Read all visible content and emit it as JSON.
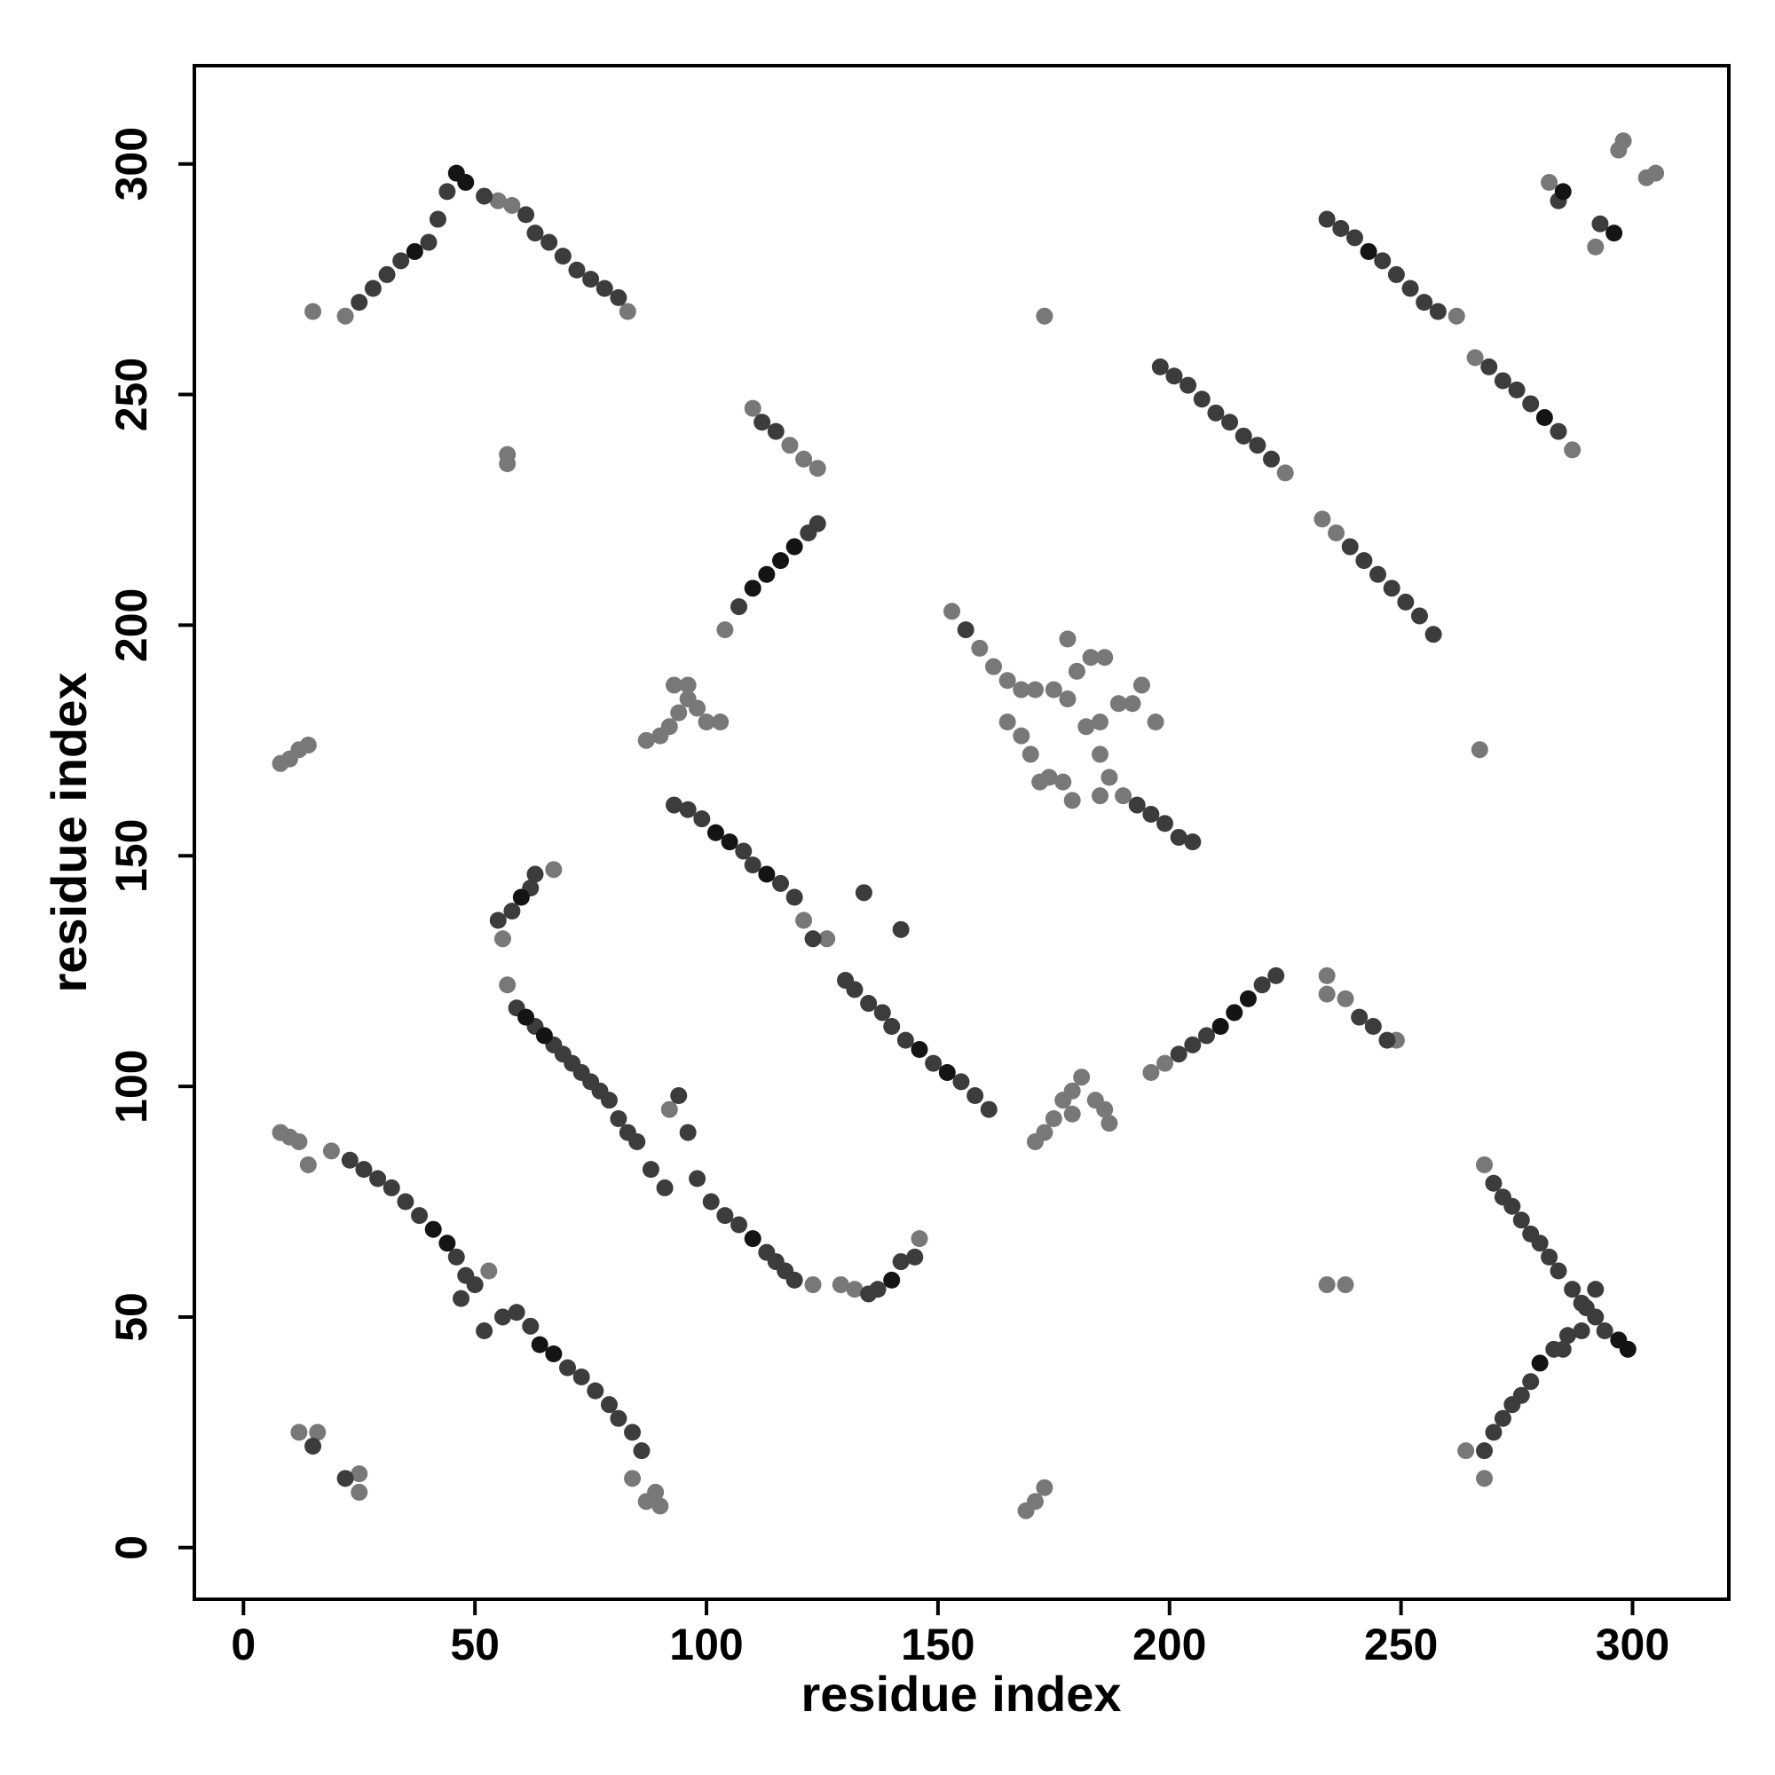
{
  "chart_data": {
    "type": "scatter",
    "x_label": "residue index",
    "y_label": "residue index",
    "xlim": [
      -10.6,
      320.8
    ],
    "ylim": [
      -11.2,
      321.3
    ],
    "xticks": [
      0,
      50,
      100,
      150,
      200,
      250,
      300
    ],
    "yticks": [
      0,
      50,
      100,
      150,
      200,
      250,
      300
    ],
    "series": [
      {
        "color": "#787878",
        "x": [
          15,
          22,
          55,
          58,
          83,
          57,
          57,
          173,
          267,
          110,
          118,
          121,
          124,
          104,
          225,
          262,
          266,
          287,
          282,
          292,
          298,
          297,
          305,
          303,
          233,
          236,
          153,
          159,
          162,
          165,
          168,
          171,
          175,
          178,
          182,
          185,
          187,
          190,
          178,
          180,
          183,
          186,
          189,
          192,
          194,
          197,
          185,
          165,
          168,
          170,
          172,
          174,
          177,
          179,
          185,
          8,
          10,
          12,
          14,
          87,
          90,
          92,
          94,
          96,
          98,
          100,
          103,
          93,
          96,
          56,
          67,
          57,
          121,
          126,
          196,
          199,
          234,
          234,
          238,
          249,
          171,
          173,
          175,
          177,
          179,
          181,
          184,
          186,
          187,
          179,
          8,
          10,
          12,
          14,
          19,
          53,
          84,
          87,
          90,
          89,
          92,
          123,
          129,
          132,
          146,
          12,
          16,
          25,
          25,
          169,
          171,
          173,
          234,
          238,
          268,
          264,
          268
        ],
        "y": [
          268,
          267,
          292,
          291,
          268,
          235,
          237,
          267,
          173,
          247,
          239,
          236,
          234,
          199,
          233,
          267,
          258,
          238,
          296,
          282,
          305,
          303,
          298,
          297,
          223,
          220,
          203,
          195,
          191,
          188,
          186,
          186,
          186,
          184,
          178,
          172,
          167,
          163,
          197,
          190,
          193,
          193,
          183,
          183,
          187,
          179,
          179,
          179,
          176,
          172,
          166,
          167,
          166,
          162,
          163,
          170,
          171,
          173,
          174,
          175,
          176,
          178,
          181,
          184,
          182,
          179,
          179,
          187,
          187,
          132,
          147,
          122,
          136,
          132,
          103,
          105,
          124,
          120,
          119,
          110,
          88,
          90,
          93,
          97,
          99,
          102,
          97,
          95,
          92,
          94,
          90,
          89,
          88,
          83,
          86,
          60,
          15,
          10,
          9,
          12,
          95,
          57,
          57,
          56,
          67,
          25,
          25,
          16,
          12,
          8,
          10,
          13,
          57,
          57,
          83,
          21,
          15
        ]
      },
      {
        "color": "#3c3c3c",
        "x": [
          25,
          28,
          31,
          34,
          40,
          42,
          44,
          52,
          61,
          63,
          66,
          69,
          72,
          75,
          78,
          81,
          112,
          115,
          107,
          122,
          124,
          198,
          201,
          204,
          207,
          210,
          213,
          216,
          219,
          222,
          234,
          237,
          240,
          246,
          249,
          252,
          255,
          258,
          269,
          272,
          275,
          278,
          284,
          284,
          293,
          239,
          242,
          245,
          248,
          251,
          254,
          257,
          156,
          193,
          196,
          199,
          202,
          205,
          93,
          96,
          99,
          108,
          110,
          116,
          119,
          123,
          130,
          132,
          135,
          138,
          140,
          143,
          149,
          155,
          158,
          161,
          134,
          142,
          55,
          58,
          62,
          63,
          59,
          63,
          67,
          69,
          71,
          73,
          75,
          77,
          79,
          81,
          83,
          85,
          202,
          205,
          208,
          220,
          223,
          241,
          244,
          247,
          23,
          26,
          29,
          32,
          35,
          38,
          46,
          48,
          50,
          47,
          52,
          56,
          59,
          62,
          70,
          73,
          76,
          79,
          81,
          84,
          86,
          88,
          91,
          94,
          96,
          98,
          101,
          104,
          107,
          113,
          115,
          117,
          119,
          135,
          137,
          142,
          145,
          15,
          22,
          270,
          272,
          274,
          276,
          278,
          280,
          282,
          284,
          287,
          289,
          292,
          294,
          268,
          270,
          272,
          274,
          276,
          278,
          283,
          285,
          286,
          289,
          290,
          292
        ],
        "y": [
          270,
          273,
          276,
          279,
          283,
          288,
          294,
          293,
          289,
          285,
          283,
          280,
          277,
          275,
          273,
          271,
          244,
          242,
          204,
          220,
          222,
          256,
          254,
          252,
          249,
          246,
          244,
          241,
          239,
          236,
          288,
          286,
          284,
          279,
          276,
          273,
          270,
          268,
          256,
          253,
          251,
          248,
          242,
          292,
          287,
          217,
          214,
          211,
          208,
          205,
          202,
          198,
          199,
          161,
          159,
          157,
          154,
          153,
          161,
          160,
          158,
          151,
          148,
          144,
          141,
          132,
          123,
          121,
          118,
          116,
          113,
          110,
          105,
          101,
          98,
          95,
          142,
          134,
          136,
          138,
          143,
          146,
          117,
          113,
          109,
          107,
          105,
          103,
          101,
          99,
          97,
          93,
          90,
          88,
          107,
          109,
          111,
          122,
          124,
          115,
          113,
          110,
          84,
          82,
          80,
          78,
          75,
          72,
          63,
          59,
          57,
          54,
          47,
          50,
          51,
          48,
          39,
          37,
          34,
          31,
          28,
          25,
          21,
          82,
          78,
          98,
          90,
          80,
          75,
          72,
          70,
          64,
          62,
          60,
          58,
          55,
          56,
          62,
          63,
          22,
          15,
          79,
          76,
          74,
          71,
          68,
          66,
          63,
          60,
          56,
          53,
          50,
          47,
          21,
          25,
          28,
          31,
          33,
          36,
          43,
          43,
          46,
          47,
          52,
          56
        ]
      },
      {
        "color": "#141414",
        "x": [
          46,
          48,
          37,
          110,
          113,
          116,
          119,
          102,
          105,
          113,
          146,
          152,
          211,
          214,
          217,
          61,
          65,
          41,
          44,
          64,
          67,
          110,
          140,
          285,
          296,
          297,
          299,
          280,
          243,
          281,
          60
        ],
        "y": [
          298,
          296,
          281,
          208,
          211,
          214,
          217,
          155,
          153,
          146,
          108,
          103,
          113,
          116,
          119,
          115,
          111,
          69,
          66,
          44,
          42,
          67,
          58,
          294,
          285,
          45,
          43,
          40,
          281,
          245,
          141
        ]
      }
    ]
  }
}
